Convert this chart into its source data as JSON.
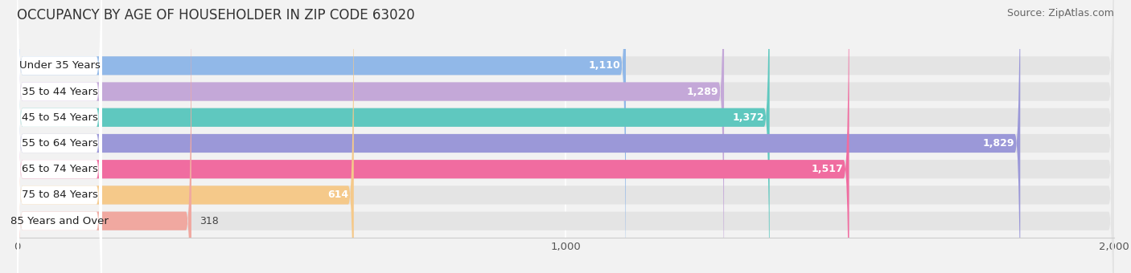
{
  "title": "OCCUPANCY BY AGE OF HOUSEHOLDER IN ZIP CODE 63020",
  "source": "Source: ZipAtlas.com",
  "categories": [
    "Under 35 Years",
    "35 to 44 Years",
    "45 to 54 Years",
    "55 to 64 Years",
    "65 to 74 Years",
    "75 to 84 Years",
    "85 Years and Over"
  ],
  "values": [
    1110,
    1289,
    1372,
    1829,
    1517,
    614,
    318
  ],
  "bar_colors": [
    "#91b8e8",
    "#c4a8d8",
    "#5fc8bf",
    "#9b98d8",
    "#f06ca0",
    "#f5c98a",
    "#f0a8a0"
  ],
  "xlim": [
    0,
    2000
  ],
  "xticks": [
    0,
    1000,
    2000
  ],
  "xticklabels": [
    "0",
    "1,000",
    "2,000"
  ],
  "title_fontsize": 12,
  "source_fontsize": 9,
  "label_fontsize": 9.5,
  "value_fontsize": 9,
  "background_color": "#f2f2f2",
  "bar_bg_color": "#e4e4e4",
  "label_bg_color": "#ffffff"
}
